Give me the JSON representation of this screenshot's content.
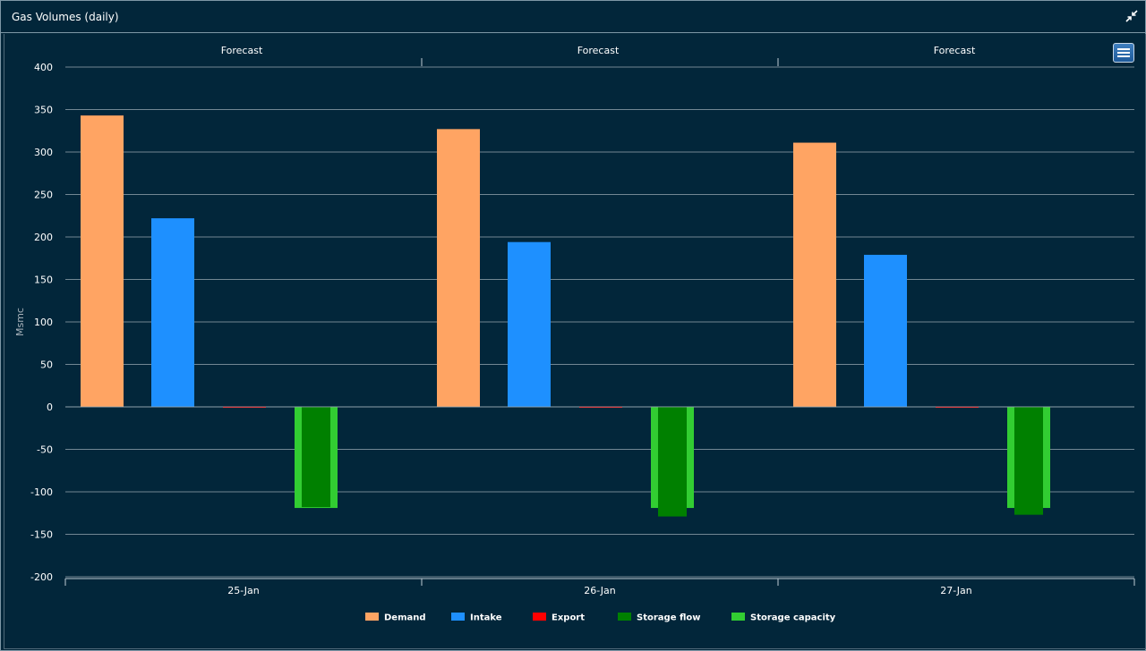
{
  "window": {
    "title": "Gas Volumes (daily)"
  },
  "icons": {
    "collapse": "collapse-arrows-icon",
    "menu": "hamburger-menu-icon"
  },
  "chart_data": {
    "type": "bar",
    "title": "",
    "ylabel": "Msmc",
    "xlabel": "",
    "ylim": [
      -200,
      400
    ],
    "yticks": [
      -200,
      -150,
      -100,
      -50,
      0,
      50,
      100,
      150,
      200,
      250,
      300,
      350,
      400
    ],
    "grid": true,
    "legend_position": "bottom-center",
    "categories": [
      "25-Jan",
      "26-Jan",
      "27-Jan"
    ],
    "top_labels": [
      "Forecast",
      "Forecast",
      "Forecast"
    ],
    "series": [
      {
        "name": "Demand",
        "color": "#ffa463",
        "values": [
          343,
          327,
          311
        ]
      },
      {
        "name": "Intake",
        "color": "#1e90ff",
        "values": [
          222,
          194,
          179
        ]
      },
      {
        "name": "Export",
        "color": "#ff0000",
        "values": [
          0.5,
          0.5,
          0.5
        ]
      },
      {
        "name": "Storage flow",
        "color": "#008000",
        "values": [
          -118,
          -129,
          -127
        ]
      },
      {
        "name": "Storage capacity",
        "color": "#32cd32",
        "values": [
          -119,
          -119,
          -119
        ]
      }
    ]
  }
}
